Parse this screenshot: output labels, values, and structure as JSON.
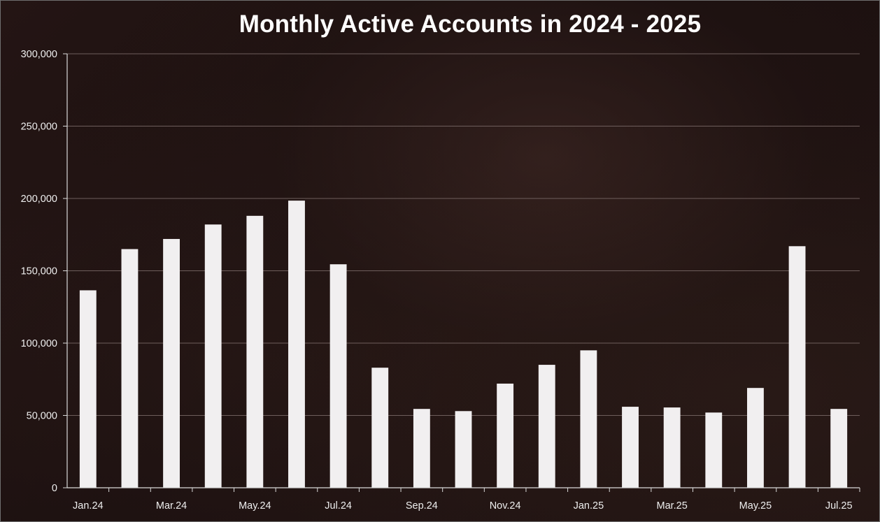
{
  "chart_data": {
    "type": "bar",
    "title": "Monthly Active Accounts in 2024 - 2025",
    "xlabel": "",
    "ylabel": "",
    "ylim": [
      0,
      300000
    ],
    "yticks": [
      0,
      50000,
      100000,
      150000,
      200000,
      250000,
      300000
    ],
    "ytick_labels": [
      "0",
      "50,000",
      "100,000",
      "150,000",
      "200,000",
      "250,000",
      "300,000"
    ],
    "grid": true,
    "categories": [
      "Jan.24",
      "Feb.24",
      "Mar.24",
      "Apr.24",
      "May.24",
      "Jun.24",
      "Jul.24",
      "Aug.24",
      "Sep.24",
      "Oct.24",
      "Nov.24",
      "Dec.24",
      "Jan.25",
      "Feb.25",
      "Mar.25",
      "Apr.25",
      "May.25",
      "Jun.25",
      "Jul.25"
    ],
    "xtick_labels": [
      "Jan.24",
      "",
      "Mar.24",
      "",
      "May.24",
      "",
      "Jul.24",
      "",
      "Sep.24",
      "",
      "Nov.24",
      "",
      "Jan.25",
      "",
      "Mar.25",
      "",
      "May.25",
      "",
      "Jul.25"
    ],
    "values": [
      136500,
      165000,
      172000,
      182000,
      188000,
      198500,
      154500,
      83000,
      54500,
      53000,
      72000,
      85000,
      95000,
      56000,
      55500,
      52000,
      69000,
      167000,
      54500
    ],
    "bar_color": "#f1eff0",
    "grid_color": "#6e5e5c",
    "axis_color": "#d9d9d9"
  }
}
